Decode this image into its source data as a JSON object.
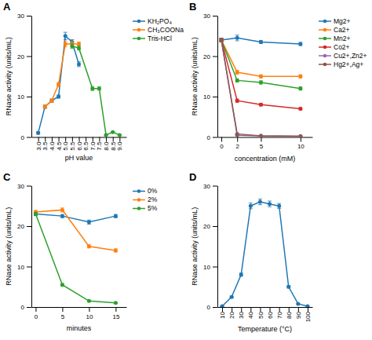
{
  "chart_data": [
    {
      "type": "line",
      "title": "A",
      "xlabel": "pH value",
      "ylabel": "RNase activity (units/mL)",
      "xlim": [
        2.5,
        9.5
      ],
      "xticks": [
        {
          "value": 3,
          "label": "3.0"
        },
        3.5,
        {
          "value": 4,
          "label": "4.0"
        },
        4.5,
        {
          "value": 5,
          "label": "5.0"
        },
        5.5,
        {
          "value": 6,
          "label": "6.0"
        },
        6.5,
        {
          "value": 7,
          "label": "7.0"
        },
        7.5,
        {
          "value": 8,
          "label": "8.0"
        },
        8.5,
        {
          "value": 9,
          "label": "9.0"
        }
      ],
      "ylim": [
        0,
        30
      ],
      "yticks": [
        0,
        10,
        20,
        30
      ],
      "grid": false,
      "legend": "right",
      "marker": "circle",
      "series": [
        {
          "name": "KH₂PO₄",
          "x": [
            3,
            3.5,
            4,
            4.5,
            5,
            5.5,
            6,
            7
          ],
          "values": [
            1,
            7.5,
            9,
            10,
            25,
            23.5,
            18,
            null
          ],
          "errors": [
            0.3,
            0.4,
            0.4,
            0.4,
            0.9,
            0.6,
            0.6,
            null
          ]
        },
        {
          "name": "CH₃COONa",
          "x": [
            3.5,
            4,
            4.5,
            5,
            5.5,
            6
          ],
          "values": [
            7.5,
            9,
            13,
            23,
            23,
            23
          ],
          "errors": [
            0.4,
            0.4,
            0.5,
            0.7,
            0.6,
            0.5
          ]
        },
        {
          "name": "Tris-HCl",
          "x": [
            5.5,
            6,
            7,
            7.5,
            8,
            8.5,
            9
          ],
          "values": [
            22.5,
            22,
            12,
            12,
            0.5,
            1.2,
            0.5
          ],
          "errors": [
            0.6,
            0.5,
            0.5,
            0.4,
            0.15,
            0.15,
            0.1
          ]
        }
      ]
    },
    {
      "type": "line",
      "title": "B",
      "xlabel": "concentration (mM)",
      "ylabel": "RNase activity (units/mL)",
      "xlim": [
        -0.5,
        11.5
      ],
      "xticks": [
        0,
        2,
        5,
        10
      ],
      "ylim": [
        0,
        30
      ],
      "yticks": [
        0,
        10,
        20,
        30
      ],
      "grid": false,
      "legend": "right",
      "marker": "circle",
      "series": [
        {
          "name": "Mg2+",
          "x": [
            0,
            2,
            5,
            10
          ],
          "values": [
            24,
            24.5,
            23.5,
            23
          ],
          "errors": [
            0.4,
            0.7,
            0.4,
            0.4
          ]
        },
        {
          "name": "Ca2+",
          "x": [
            0,
            2,
            5,
            10
          ],
          "values": [
            24,
            16,
            15,
            15
          ],
          "errors": [
            0.4,
            0.5,
            0.4,
            0.4
          ]
        },
        {
          "name": "Mn2+",
          "x": [
            0,
            2,
            5,
            10
          ],
          "values": [
            24,
            14,
            13.5,
            12
          ],
          "errors": [
            0.4,
            0.4,
            0.4,
            0.4
          ]
        },
        {
          "name": "Co2+",
          "x": [
            0,
            2,
            5,
            10
          ],
          "values": [
            24,
            9,
            8,
            7
          ],
          "errors": [
            0.4,
            0.4,
            0.3,
            0.3
          ]
        },
        {
          "name": "Cu2+,Zn2+",
          "x": [
            0,
            2,
            5,
            10
          ],
          "values": [
            24,
            0.8,
            0.3,
            0.2
          ],
          "errors": [
            0.4,
            0.15,
            0.1,
            0.05
          ]
        },
        {
          "name": "Hg2+,Ag+",
          "x": [
            0,
            2,
            5,
            10
          ],
          "values": [
            24,
            0.5,
            0.3,
            0.2
          ],
          "errors": [
            0.4,
            0.1,
            0.05,
            0.05
          ]
        }
      ]
    },
    {
      "type": "line",
      "title": "C",
      "xlabel": "minutes",
      "ylabel": "RNase activity (units/mL)",
      "xlim": [
        -0.8,
        17
      ],
      "xticks": [
        0,
        5,
        10,
        15
      ],
      "ylim": [
        0,
        30
      ],
      "yticks": [
        0,
        10,
        20,
        30
      ],
      "grid": false,
      "legend": "right",
      "marker": "circle",
      "series": [
        {
          "name": "0%",
          "x": [
            0,
            5,
            10,
            15
          ],
          "values": [
            23,
            22.5,
            21,
            22.5
          ],
          "errors": [
            0.4,
            0.4,
            0.5,
            0.4
          ]
        },
        {
          "name": "2%",
          "x": [
            0,
            5,
            10,
            15
          ],
          "values": [
            23.5,
            24,
            15,
            14
          ],
          "errors": [
            0.4,
            0.5,
            0.4,
            0.4
          ]
        },
        {
          "name": "5%",
          "x": [
            0,
            5,
            10,
            15
          ],
          "values": [
            23,
            5.5,
            1.5,
            1.0
          ],
          "errors": [
            0.4,
            0.3,
            0.15,
            0.1
          ]
        }
      ]
    },
    {
      "type": "line",
      "title": "D",
      "xlabel": "Temperature (°C)",
      "ylabel": "RNase activity (units/mL)",
      "xlim": [
        5,
        105
      ],
      "xticks": [
        10,
        20,
        30,
        40,
        50,
        60,
        70,
        80,
        90,
        100
      ],
      "ylim": [
        0,
        30
      ],
      "yticks": [
        0,
        10,
        20,
        30
      ],
      "grid": false,
      "marker": "circle",
      "series": [
        {
          "x": [
            10,
            20,
            30,
            40,
            50,
            60,
            70,
            80,
            90,
            100
          ],
          "values": [
            0.2,
            2.5,
            8,
            25,
            26,
            25.5,
            25,
            5,
            0.8,
            0.2
          ],
          "errors": [
            0.05,
            0.2,
            0.4,
            0.7,
            0.7,
            0.7,
            0.6,
            0.3,
            0.1,
            0.05
          ]
        }
      ]
    }
  ]
}
